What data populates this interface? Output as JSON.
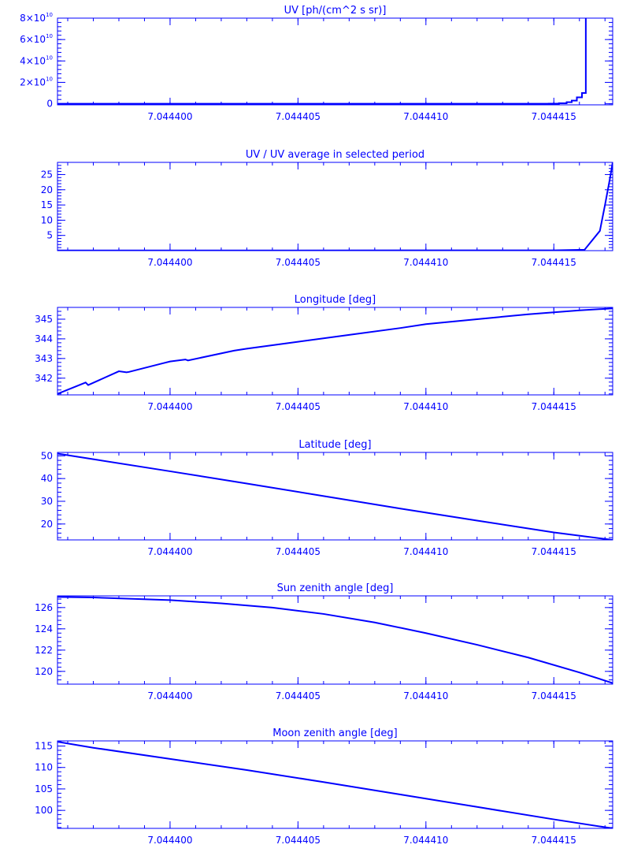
{
  "colors": {
    "line": "#0000ff",
    "axis": "#0000ff",
    "background": "#ffffff"
  },
  "x_axis_ticks": [
    "7.044400",
    "7.044405",
    "7.044410",
    "7.044415"
  ],
  "chart_data": [
    {
      "type": "line",
      "title": "UV [ph/(cm^2 s sr)]",
      "xlim": [
        7.0443956,
        7.0444173
      ],
      "ylim": [
        -1000000000.0,
        80000000000.0
      ],
      "xticks": [
        7.0444,
        7.044405,
        7.04441,
        7.044415
      ],
      "yticks": [
        0,
        20000000000.0,
        40000000000.0,
        60000000000.0,
        80000000000.0
      ],
      "ytick_labels": [
        {
          "mant": "0",
          "exp": ""
        },
        {
          "mant": "2×10",
          "exp": "10"
        },
        {
          "mant": "4×10",
          "exp": "10"
        },
        {
          "mant": "6×10",
          "exp": "10"
        },
        {
          "mant": "8×10",
          "exp": "10"
        }
      ],
      "step": true,
      "x": [
        7.0443956,
        7.0444148,
        7.0444152,
        7.0444155,
        7.0444157,
        7.0444159,
        7.0444161,
        7.04441625
      ],
      "y": [
        0,
        100000000.0,
        500000000.0,
        1500000000.0,
        3000000000.0,
        6000000000.0,
        10000000000.0,
        80000000000.0
      ]
    },
    {
      "type": "line",
      "title": "UV / UV average in selected period",
      "xlim": [
        7.0443956,
        7.0444173
      ],
      "ylim": [
        0,
        29
      ],
      "xticks": [
        7.0444,
        7.044405,
        7.04441,
        7.044415
      ],
      "yticks": [
        5,
        10,
        15,
        20,
        25
      ],
      "ytick_labels": [
        {
          "mant": "5",
          "exp": ""
        },
        {
          "mant": "10",
          "exp": ""
        },
        {
          "mant": "15",
          "exp": ""
        },
        {
          "mant": "20",
          "exp": ""
        },
        {
          "mant": "25",
          "exp": ""
        }
      ],
      "x": [
        7.0443956,
        7.044415,
        7.0444162,
        7.0444168,
        7.044417,
        7.0444172,
        7.0444173
      ],
      "y": [
        0.05,
        0.1,
        0.3,
        6.5,
        15,
        24,
        29
      ]
    },
    {
      "type": "line",
      "title": "Longitude [deg]",
      "xlim": [
        7.0443956,
        7.0444173
      ],
      "ylim": [
        341.15,
        345.6
      ],
      "xticks": [
        7.0444,
        7.044405,
        7.04441,
        7.044415
      ],
      "yticks": [
        342,
        343,
        344,
        345
      ],
      "ytick_labels": [
        {
          "mant": "342",
          "exp": ""
        },
        {
          "mant": "343",
          "exp": ""
        },
        {
          "mant": "344",
          "exp": ""
        },
        {
          "mant": "345",
          "exp": ""
        }
      ],
      "x": [
        7.0443956,
        7.0443967,
        7.0443968,
        7.044398,
        7.0443983,
        7.0443984,
        7.0443997,
        7.0444,
        7.0444006,
        7.0444007,
        7.0444025,
        7.044403,
        7.044405,
        7.044407,
        7.044409,
        7.04441,
        7.044412,
        7.044414,
        7.044416,
        7.0444173
      ],
      "y": [
        341.2,
        341.78,
        341.65,
        342.35,
        342.3,
        342.32,
        342.75,
        342.85,
        342.95,
        342.9,
        343.4,
        343.5,
        343.85,
        344.2,
        344.55,
        344.75,
        345.0,
        345.25,
        345.45,
        345.55
      ]
    },
    {
      "type": "line",
      "title": "Latitude [deg]",
      "xlim": [
        7.0443956,
        7.0444173
      ],
      "ylim": [
        13,
        51.5
      ],
      "xticks": [
        7.0444,
        7.044405,
        7.04441,
        7.044415
      ],
      "yticks": [
        20,
        30,
        40,
        50
      ],
      "ytick_labels": [
        {
          "mant": "20",
          "exp": ""
        },
        {
          "mant": "30",
          "exp": ""
        },
        {
          "mant": "40",
          "exp": ""
        },
        {
          "mant": "50",
          "exp": ""
        }
      ],
      "x": [
        7.0443956,
        7.044397,
        7.0444,
        7.044403,
        7.044406,
        7.044409,
        7.044412,
        7.044415,
        7.0444173
      ],
      "y": [
        51,
        48.5,
        43.2,
        37.8,
        32.3,
        26.8,
        21.5,
        16.3,
        13
      ]
    },
    {
      "type": "line",
      "title": "Sun zenith angle [deg]",
      "xlim": [
        7.0443956,
        7.0444173
      ],
      "ylim": [
        118.8,
        127.1
      ],
      "xticks": [
        7.0444,
        7.044405,
        7.04441,
        7.044415
      ],
      "yticks": [
        120,
        122,
        124,
        126
      ],
      "ytick_labels": [
        {
          "mant": "120",
          "exp": ""
        },
        {
          "mant": "122",
          "exp": ""
        },
        {
          "mant": "124",
          "exp": ""
        },
        {
          "mant": "126",
          "exp": ""
        }
      ],
      "x": [
        7.0443956,
        7.044397,
        7.0444,
        7.044402,
        7.044404,
        7.044406,
        7.044408,
        7.04441,
        7.044412,
        7.044414,
        7.044416,
        7.0444173
      ],
      "y": [
        127.0,
        126.95,
        126.7,
        126.4,
        126.0,
        125.4,
        124.6,
        123.6,
        122.5,
        121.3,
        119.9,
        118.9
      ]
    },
    {
      "type": "line",
      "title": "Moon zenith angle [deg]",
      "xlim": [
        7.0443956,
        7.0444173
      ],
      "ylim": [
        95.8,
        116.2
      ],
      "xticks": [
        7.0444,
        7.044405,
        7.04441,
        7.044415
      ],
      "yticks": [
        100,
        105,
        110,
        115
      ],
      "ytick_labels": [
        {
          "mant": "100",
          "exp": ""
        },
        {
          "mant": "105",
          "exp": ""
        },
        {
          "mant": "110",
          "exp": ""
        },
        {
          "mant": "115",
          "exp": ""
        }
      ],
      "x": [
        7.0443956,
        7.044397,
        7.0444,
        7.044403,
        7.044406,
        7.044409,
        7.044412,
        7.044415,
        7.0444173
      ],
      "y": [
        116,
        114.6,
        112,
        109.4,
        106.6,
        103.7,
        100.8,
        97.9,
        95.8
      ]
    }
  ]
}
